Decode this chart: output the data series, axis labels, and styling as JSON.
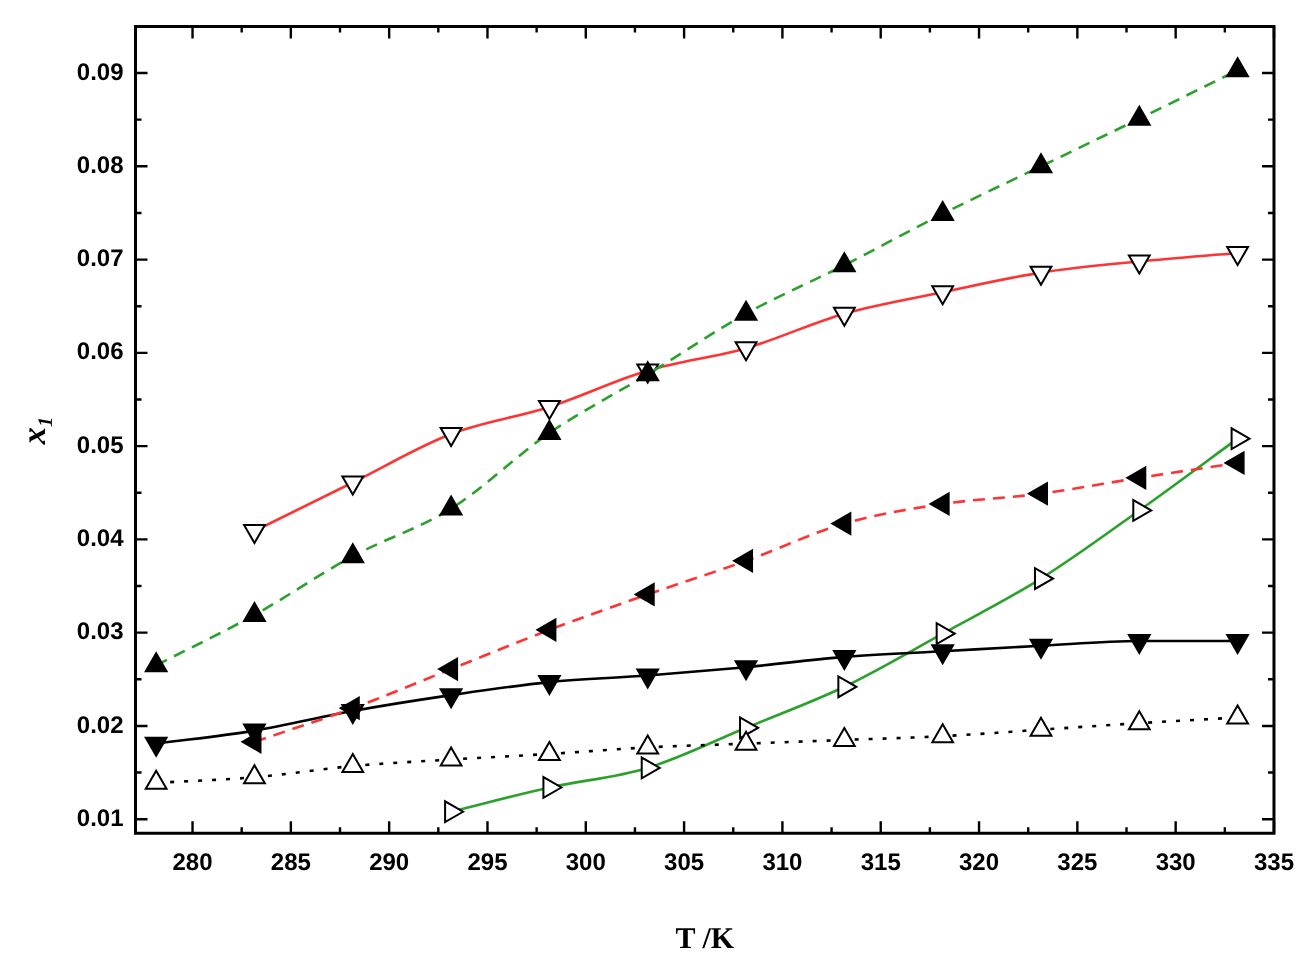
{
  "chart_data": {
    "type": "line",
    "xlabel": "T /K",
    "ylabel": "x₁",
    "x": [
      278.15,
      283.15,
      288.15,
      293.15,
      298.15,
      303.15,
      308.15,
      313.15,
      318.15,
      323.15,
      328.15,
      333.15
    ],
    "xlim": [
      277.1,
      335
    ],
    "xticks": [
      280,
      285,
      290,
      295,
      300,
      305,
      310,
      315,
      320,
      325,
      330,
      335
    ],
    "ylim": [
      0.0085,
      0.095
    ],
    "yticks": [
      0.01,
      0.02,
      0.03,
      0.04,
      0.05,
      0.06,
      0.07,
      0.08,
      0.09
    ],
    "marker": "triangle",
    "legend": false,
    "grid": false,
    "series": [
      {
        "color": "#2ca02c",
        "line_style": "dashed",
        "values": [
          0.0265,
          0.0319,
          0.0382,
          0.0433,
          0.0514,
          0.0577,
          0.0642,
          0.0694,
          0.0749,
          0.08,
          0.0851,
          0.0903
        ]
      },
      {
        "color": "#ff3333",
        "line_style": "solid",
        "values": [
          null,
          0.0409,
          0.0461,
          0.0513,
          0.0542,
          0.0581,
          0.0605,
          0.0642,
          0.0665,
          0.0686,
          0.0698,
          0.0707
        ]
      },
      {
        "color": "#ff3333",
        "line_style": "dashed",
        "values": [
          null,
          0.0183,
          0.0219,
          0.0261,
          0.0303,
          0.0341,
          0.0377,
          0.0417,
          0.0438,
          0.0449,
          0.0466,
          0.0482
        ]
      },
      {
        "color": "#000000",
        "line_style": "solid",
        "values": [
          0.0181,
          0.0195,
          0.0216,
          0.0233,
          0.0247,
          0.0254,
          0.0263,
          0.0274,
          0.028,
          0.0286,
          0.0291,
          0.0291
        ]
      },
      {
        "color": "#000000",
        "line_style": "dotted",
        "values": [
          0.0139,
          0.0145,
          0.0157,
          0.0164,
          0.017,
          0.0177,
          0.0181,
          0.0185,
          0.0189,
          0.0196,
          0.0203,
          0.0209
        ]
      },
      {
        "color": "#2ca02c",
        "line_style": "solid",
        "values": [
          null,
          null,
          null,
          0.0108,
          0.0134,
          0.0155,
          0.0198,
          0.0242,
          0.0299,
          0.0358,
          0.0431,
          0.0508
        ]
      }
    ]
  }
}
